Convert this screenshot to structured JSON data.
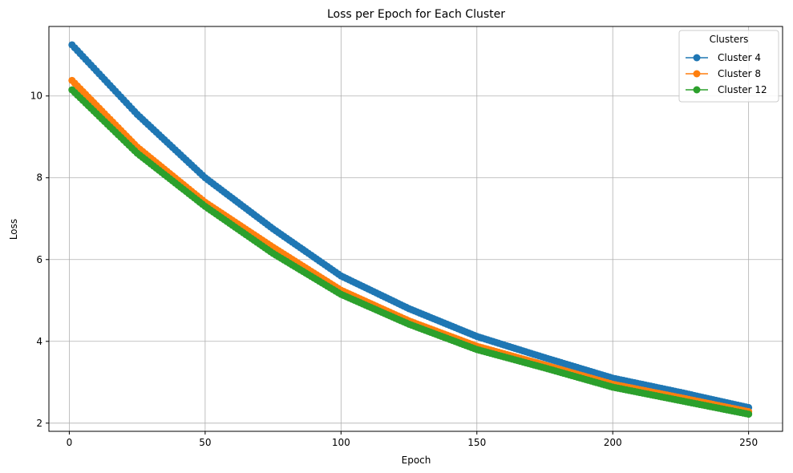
{
  "chart_data": {
    "type": "line",
    "title": "Loss per Epoch for Each Cluster",
    "xlabel": "Epoch",
    "ylabel": "Loss",
    "xlim": [
      -7.5,
      262.5
    ],
    "ylim": [
      1.8,
      11.7
    ],
    "xticks": [
      0,
      50,
      100,
      150,
      200,
      250
    ],
    "yticks": [
      2,
      4,
      6,
      8,
      10
    ],
    "grid": true,
    "legend": {
      "title": "Clusters",
      "placement": "top-right"
    },
    "x": {
      "start": 1,
      "end": 250,
      "step": 1
    },
    "series": [
      {
        "name": "Cluster 4",
        "color": "#1f77b4",
        "marker": "circle",
        "values_at": [
          [
            1,
            11.25
          ],
          [
            25,
            9.55
          ],
          [
            50,
            8.0
          ],
          [
            75,
            6.75
          ],
          [
            100,
            5.6
          ],
          [
            125,
            4.8
          ],
          [
            150,
            4.12
          ],
          [
            175,
            3.6
          ],
          [
            200,
            3.1
          ],
          [
            225,
            2.75
          ],
          [
            250,
            2.38
          ]
        ]
      },
      {
        "name": "Cluster 8",
        "color": "#ff7f0e",
        "marker": "circle",
        "values_at": [
          [
            1,
            10.38
          ],
          [
            25,
            8.75
          ],
          [
            50,
            7.4
          ],
          [
            75,
            6.3
          ],
          [
            100,
            5.25
          ],
          [
            125,
            4.5
          ],
          [
            150,
            3.88
          ],
          [
            175,
            3.42
          ],
          [
            200,
            2.95
          ],
          [
            225,
            2.62
          ],
          [
            250,
            2.28
          ]
        ]
      },
      {
        "name": "Cluster 12",
        "color": "#2ca02c",
        "marker": "circle",
        "values_at": [
          [
            1,
            10.15
          ],
          [
            25,
            8.6
          ],
          [
            50,
            7.3
          ],
          [
            75,
            6.15
          ],
          [
            100,
            5.15
          ],
          [
            125,
            4.42
          ],
          [
            150,
            3.8
          ],
          [
            175,
            3.35
          ],
          [
            200,
            2.88
          ],
          [
            225,
            2.55
          ],
          [
            250,
            2.22
          ]
        ]
      }
    ]
  }
}
